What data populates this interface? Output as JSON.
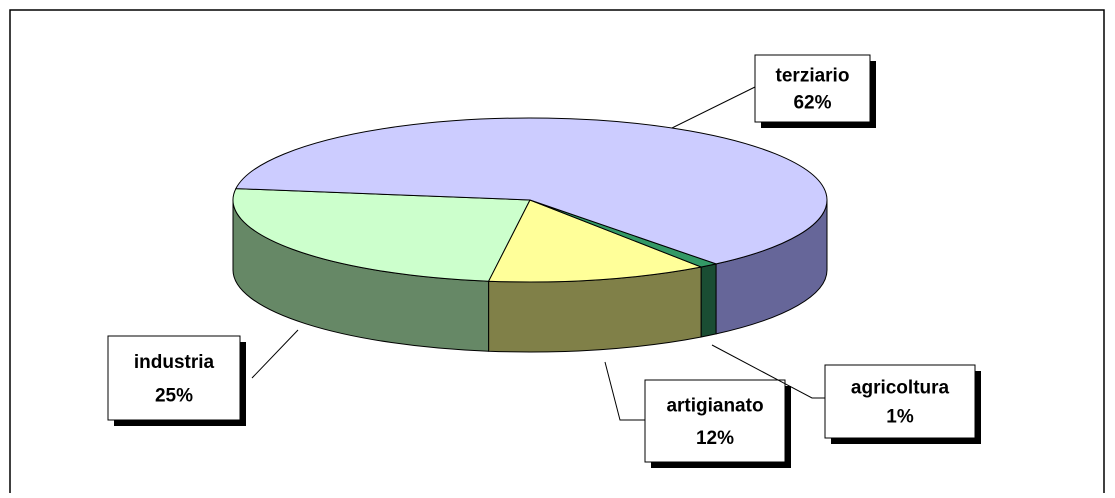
{
  "chart_data": {
    "type": "pie3d",
    "categories": [
      "industria",
      "artigianato",
      "agricoltura",
      "terziario"
    ],
    "values": [
      25,
      12,
      1,
      62
    ],
    "value_labels": [
      "25%",
      "12%",
      "1%",
      "62%"
    ],
    "colors": [
      "#ccffcc",
      "#ffff99",
      "#339966",
      "#ccccff"
    ],
    "side_colors": [
      "#668866",
      "#808048",
      "#1a4d33",
      "#666699"
    ]
  }
}
